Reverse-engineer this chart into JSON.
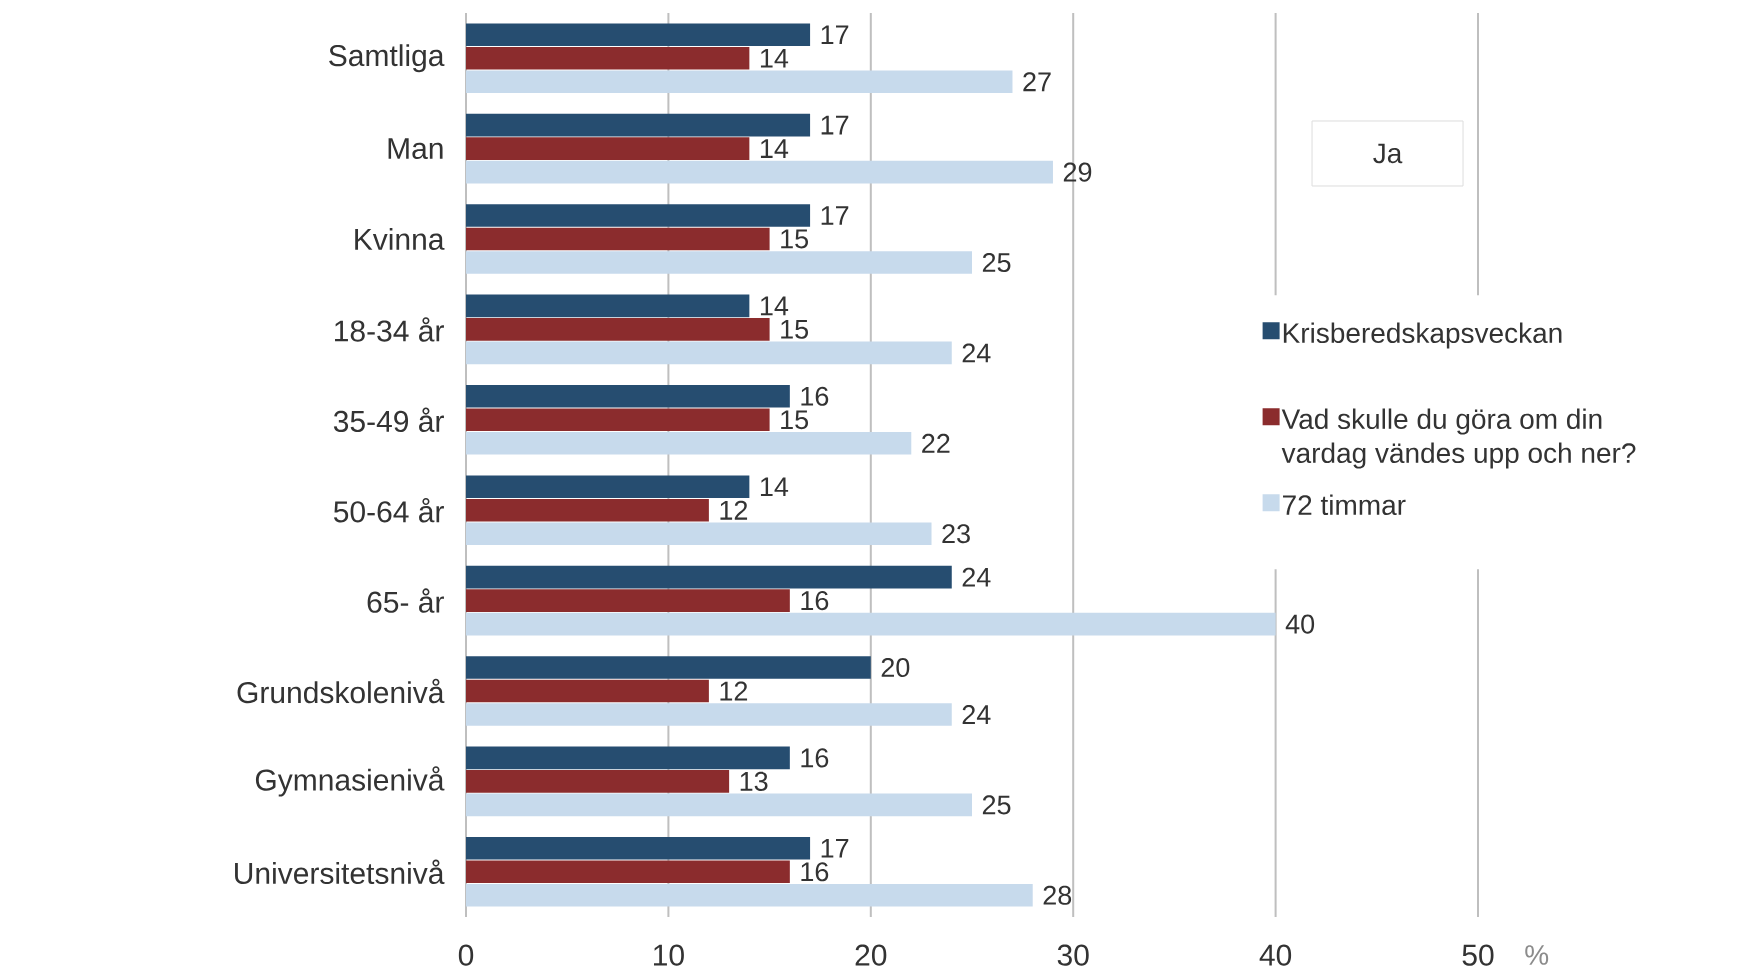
{
  "chart_data": {
    "type": "bar",
    "orientation": "horizontal",
    "categories": [
      "Samtliga",
      "Man",
      "Kvinna",
      "18-34 år",
      "35-49 år",
      "50-64 år",
      "65- år",
      "Grundskolenivå",
      "Gymnasienivå",
      "Universitetsnivå"
    ],
    "series": [
      {
        "name": "Krisberedskapsveckan",
        "color": "#264d70",
        "values": [
          17,
          17,
          17,
          14,
          16,
          14,
          24,
          20,
          16,
          17
        ]
      },
      {
        "name": "Vad skulle du göra om din vardag vändes upp och ner?",
        "color": "#8b2c2d",
        "values": [
          14,
          14,
          15,
          15,
          15,
          12,
          16,
          12,
          13,
          16
        ]
      },
      {
        "name": "72 timmar",
        "color": "#c7daec",
        "values": [
          27,
          29,
          25,
          24,
          22,
          23,
          40,
          24,
          25,
          28
        ]
      }
    ],
    "xlabel": "%",
    "xlim": [
      0,
      50
    ],
    "xticks": [
      0,
      10,
      20,
      30,
      40,
      50
    ],
    "grid": "x",
    "legend": "right",
    "data_labels": true,
    "annotations": [
      "Ja"
    ]
  }
}
